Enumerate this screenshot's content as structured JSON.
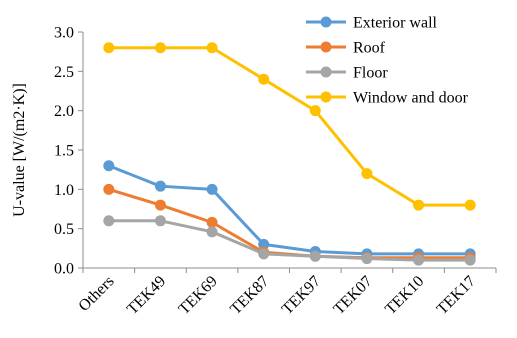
{
  "chart_data": {
    "type": "line",
    "title": "",
    "xlabel": "",
    "ylabel": "U-value  [W/(m2·K)]",
    "ylim": [
      0,
      3.0
    ],
    "yticks": [
      "0.0",
      "0.5",
      "1.0",
      "1.5",
      "2.0",
      "2.5",
      "3.0"
    ],
    "grid": false,
    "legend_position": "top-right",
    "categories": [
      "Others",
      "TEK49",
      "TEK69",
      "TEK87",
      "TEK97",
      "TEK07",
      "TEK10",
      "TEK17"
    ],
    "series": [
      {
        "name": "Exterior wall",
        "color": "#5B9BD5",
        "values": [
          1.3,
          1.04,
          1.0,
          0.3,
          0.21,
          0.18,
          0.18,
          0.18
        ]
      },
      {
        "name": "Roof",
        "color": "#ED7D31",
        "values": [
          1.0,
          0.8,
          0.58,
          0.2,
          0.15,
          0.13,
          0.13,
          0.13
        ]
      },
      {
        "name": "Floor",
        "color": "#A5A5A5",
        "values": [
          0.6,
          0.6,
          0.46,
          0.18,
          0.15,
          0.12,
          0.1,
          0.1
        ]
      },
      {
        "name": "Window and door",
        "color": "#FFC000",
        "values": [
          2.8,
          2.8,
          2.8,
          2.4,
          2.0,
          1.2,
          0.8,
          0.8
        ]
      }
    ]
  }
}
